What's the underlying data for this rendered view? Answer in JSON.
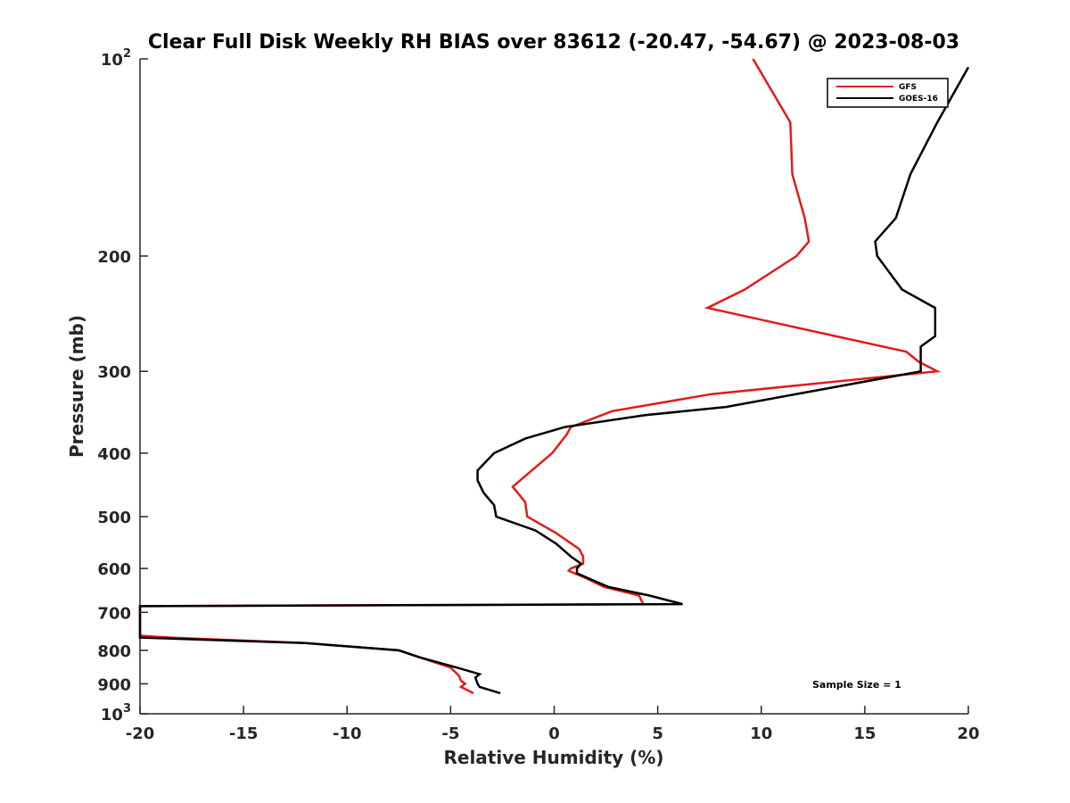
{
  "chart_data": {
    "type": "line",
    "title": "Clear Full Disk Weekly RH BIAS over 83612 (-20.47, -54.67) @ 2023-08-03",
    "xlabel": "Relative Humidity (%)",
    "ylabel": "Pressure (mb)",
    "xlim": [
      -20,
      20
    ],
    "ylim": [
      100,
      1000
    ],
    "y_scale": "log",
    "y_reversed": true,
    "grid": false,
    "legend_position": "top-right",
    "x_ticks": [
      "-20",
      "-15",
      "-10",
      "-5",
      "0",
      "5",
      "10",
      "15",
      "20"
    ],
    "y_ticks": [
      {
        "value": 100,
        "base": "10",
        "exp": "2"
      },
      {
        "value": 200,
        "label": "200"
      },
      {
        "value": 300,
        "label": "300"
      },
      {
        "value": 400,
        "label": "400"
      },
      {
        "value": 500,
        "label": "500"
      },
      {
        "value": 600,
        "label": "600"
      },
      {
        "value": 700,
        "label": "700"
      },
      {
        "value": 800,
        "label": "800"
      },
      {
        "value": 900,
        "label": "900"
      },
      {
        "value": 1000,
        "base": "10",
        "exp": "3"
      }
    ],
    "annotation": "Sample Size = 1",
    "series": [
      {
        "name": "GFS",
        "color": "#e31a1c",
        "points": [
          [
            9.6,
            100
          ],
          [
            11.4,
            125
          ],
          [
            11.5,
            150
          ],
          [
            12.1,
            175
          ],
          [
            12.3,
            190
          ],
          [
            11.7,
            200
          ],
          [
            9.2,
            225
          ],
          [
            7.4,
            240
          ],
          [
            17.0,
            280
          ],
          [
            17.6,
            290
          ],
          [
            18.5,
            300
          ],
          [
            7.6,
            325
          ],
          [
            2.8,
            345
          ],
          [
            0.8,
            365
          ],
          [
            0.6,
            375
          ],
          [
            -0.1,
            400
          ],
          [
            -2.0,
            450
          ],
          [
            -1.4,
            475
          ],
          [
            -1.3,
            500
          ],
          [
            0.1,
            530
          ],
          [
            1.2,
            560
          ],
          [
            1.4,
            575
          ],
          [
            1.4,
            590
          ],
          [
            0.8,
            600
          ],
          [
            0.7,
            605
          ],
          [
            1.5,
            620
          ],
          [
            2.4,
            640
          ],
          [
            4.1,
            660
          ],
          [
            4.3,
            680
          ],
          [
            -20.0,
            685
          ],
          [
            -20.0,
            760
          ],
          [
            -18.5,
            765
          ],
          [
            -12.0,
            780
          ],
          [
            -7.5,
            800
          ],
          [
            -6.5,
            820
          ],
          [
            -5.0,
            850
          ],
          [
            -4.6,
            875
          ],
          [
            -4.5,
            890
          ],
          [
            -4.3,
            900
          ],
          [
            -4.5,
            910
          ],
          [
            -3.9,
            930
          ]
        ]
      },
      {
        "name": "GOES-16",
        "color": "#000000",
        "points": [
          [
            20.0,
            103
          ],
          [
            18.5,
            125
          ],
          [
            17.2,
            150
          ],
          [
            16.5,
            175
          ],
          [
            15.5,
            190
          ],
          [
            15.6,
            200
          ],
          [
            16.8,
            225
          ],
          [
            18.4,
            240
          ],
          [
            18.4,
            265
          ],
          [
            17.7,
            275
          ],
          [
            17.7,
            300
          ],
          [
            8.3,
            340
          ],
          [
            4.4,
            350
          ],
          [
            0.5,
            365
          ],
          [
            -1.4,
            380
          ],
          [
            -2.9,
            400
          ],
          [
            -3.7,
            425
          ],
          [
            -3.7,
            440
          ],
          [
            -3.4,
            460
          ],
          [
            -2.9,
            480
          ],
          [
            -2.8,
            500
          ],
          [
            -0.9,
            525
          ],
          [
            0.1,
            550
          ],
          [
            0.8,
            575
          ],
          [
            1.3,
            590
          ],
          [
            1.1,
            600
          ],
          [
            1.1,
            610
          ],
          [
            1.6,
            620
          ],
          [
            2.6,
            640
          ],
          [
            4.6,
            660
          ],
          [
            6.2,
            680
          ],
          [
            -20.0,
            685
          ],
          [
            -20.0,
            765
          ],
          [
            -12.0,
            780
          ],
          [
            -7.5,
            800
          ],
          [
            -6.5,
            820
          ],
          [
            -4.7,
            850
          ],
          [
            -3.6,
            870
          ],
          [
            -3.8,
            880
          ],
          [
            -3.7,
            900
          ],
          [
            -3.6,
            910
          ],
          [
            -2.6,
            930
          ]
        ]
      }
    ]
  }
}
